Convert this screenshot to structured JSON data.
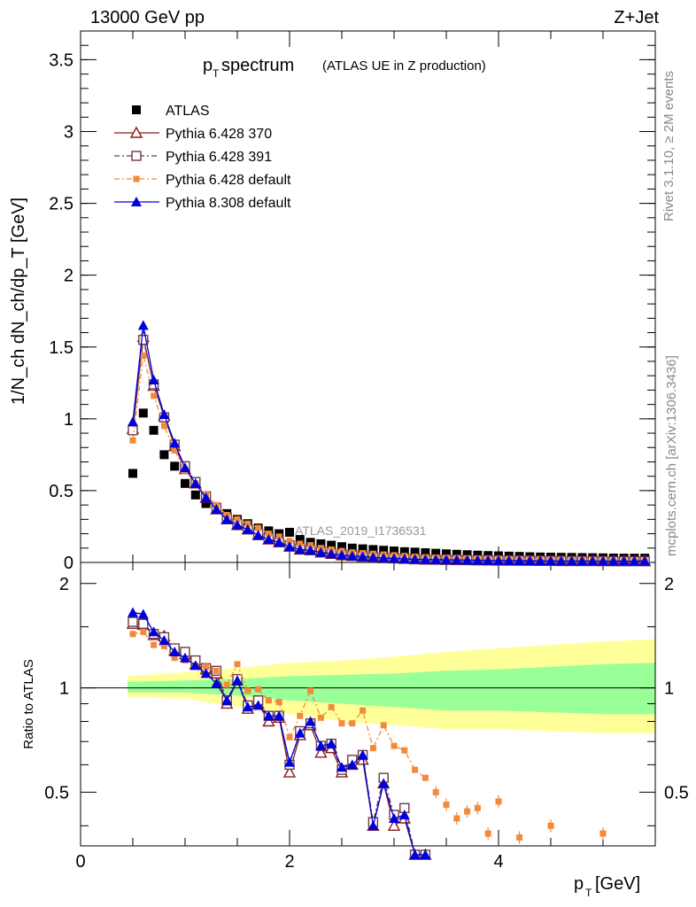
{
  "header": {
    "left": "13000 GeV pp",
    "right": "Z+Jet"
  },
  "side_labels": {
    "rivet": "Rivet 3.1.10, ≥ 2M events",
    "mcplots": "mcplots.cern.ch [arXiv:1306.3436]"
  },
  "watermark": "ATLAS_2019_I1736531",
  "colors": {
    "atlas": "#000000",
    "pythia6_370": "#8b1a1a",
    "pythia6_391": "#6e3b4a",
    "pythia6_default": "#f28a3b",
    "pythia8_default": "#0000dd",
    "band_inner": "#99ff99",
    "band_outer": "#ffff99"
  },
  "chart_data": [
    {
      "type": "scatter",
      "title_main": "p",
      "title_sub": "T",
      "title_rest": " spectrum",
      "title_paren": "(ATLAS UE in Z production)",
      "ylabel": "1/N_ch dN_ch/dp_T [GeV]",
      "xlim": [
        0,
        5.5
      ],
      "ylim": [
        0,
        3.7
      ],
      "yticks": [
        "0",
        "0.5",
        "1",
        "1.5",
        "2",
        "2.5",
        "3",
        "3.5"
      ],
      "x": [
        0.5,
        0.6,
        0.7,
        0.8,
        0.9,
        1.0,
        1.1,
        1.2,
        1.3,
        1.4,
        1.5,
        1.6,
        1.7,
        1.8,
        1.9,
        2.0,
        2.1,
        2.2,
        2.3,
        2.4,
        2.5,
        2.6,
        2.7,
        2.8,
        2.9,
        3.0,
        3.1,
        3.2,
        3.3,
        3.4,
        3.5,
        3.6,
        3.7,
        3.8,
        3.9,
        4.0,
        4.1,
        4.2,
        4.3,
        4.4,
        4.5,
        4.6,
        4.7,
        4.8,
        4.9,
        5.0,
        5.1,
        5.2,
        5.3,
        5.4
      ],
      "series": [
        {
          "name": "ATLAS",
          "style": "atlas",
          "values": [
            0.62,
            1.04,
            0.92,
            0.75,
            0.67,
            0.55,
            0.47,
            0.41,
            0.37,
            0.34,
            0.3,
            0.27,
            0.24,
            0.22,
            0.2,
            0.21,
            0.16,
            0.14,
            0.13,
            0.12,
            0.11,
            0.1,
            0.095,
            0.09,
            0.085,
            0.08,
            0.075,
            0.072,
            0.068,
            0.064,
            0.06,
            0.057,
            0.054,
            0.051,
            0.048,
            0.046,
            0.044,
            0.042,
            0.04,
            0.038,
            0.037,
            0.036,
            0.035,
            0.034,
            0.033,
            0.032,
            0.031,
            0.03,
            0.03,
            0.03
          ]
        },
        {
          "name": "Pythia 6.428 370",
          "style": "p370",
          "values": [
            0.93,
            1.57,
            1.23,
            1.02,
            0.81,
            0.65,
            0.55,
            0.45,
            0.37,
            0.3,
            0.26,
            0.23,
            0.19,
            0.16,
            0.14,
            0.11,
            0.09,
            0.085,
            0.07,
            0.06,
            0.05,
            0.045,
            0.04,
            0.035,
            0.03,
            0.028,
            0.025,
            0.022,
            0.02,
            0.019,
            0.018,
            0.017,
            0.016,
            0.015,
            0.014,
            0.013,
            0.013,
            0.012,
            0.012,
            0.011,
            0.011,
            0.01,
            0.01,
            0.01,
            0.01,
            0.009,
            0.009,
            0.009,
            0.009,
            0.009
          ]
        },
        {
          "name": "Pythia 6.428 391",
          "style": "p391",
          "values": [
            0.92,
            1.55,
            1.24,
            1.01,
            0.82,
            0.67,
            0.56,
            0.46,
            0.38,
            0.31,
            0.27,
            0.23,
            0.2,
            0.17,
            0.14,
            0.12,
            0.095,
            0.085,
            0.075,
            0.065,
            0.055,
            0.048,
            0.042,
            0.037,
            0.032,
            0.029,
            0.026,
            0.023,
            0.021,
            0.02,
            0.019,
            0.018,
            0.017,
            0.016,
            0.015,
            0.014,
            0.013,
            0.013,
            0.012,
            0.012,
            0.011,
            0.011,
            0.01,
            0.01,
            0.01,
            0.01,
            0.009,
            0.009,
            0.009,
            0.009
          ]
        },
        {
          "name": "Pythia 6.428 default",
          "style": "p6def",
          "values": [
            0.85,
            1.44,
            1.16,
            0.95,
            0.78,
            0.64,
            0.55,
            0.47,
            0.4,
            0.33,
            0.3,
            0.27,
            0.24,
            0.2,
            0.18,
            0.15,
            0.13,
            0.12,
            0.1,
            0.09,
            0.08,
            0.07,
            0.065,
            0.06,
            0.055,
            0.05,
            0.045,
            0.04,
            0.036,
            0.034,
            0.032,
            0.03,
            0.028,
            0.026,
            0.025,
            0.024,
            0.023,
            0.022,
            0.021,
            0.02,
            0.02,
            0.019,
            0.018,
            0.018,
            0.017,
            0.017,
            0.016,
            0.016,
            0.015,
            0.015
          ]
        },
        {
          "name": "Pythia 8.308 default",
          "style": "p8def",
          "values": [
            0.98,
            1.65,
            1.27,
            1.03,
            0.83,
            0.66,
            0.55,
            0.45,
            0.37,
            0.3,
            0.26,
            0.23,
            0.19,
            0.16,
            0.14,
            0.11,
            0.09,
            0.085,
            0.07,
            0.06,
            0.05,
            0.045,
            0.04,
            0.035,
            0.03,
            0.028,
            0.025,
            0.022,
            0.02,
            0.019,
            0.018,
            0.017,
            0.016,
            0.015,
            0.014,
            0.013,
            0.013,
            0.012,
            0.012,
            0.011,
            0.011,
            0.01,
            0.01,
            0.01,
            0.01,
            0.009,
            0.009,
            0.009,
            0.009,
            0.009
          ]
        }
      ]
    },
    {
      "type": "scatter",
      "ylabel": "Ratio to ATLAS",
      "xlabel_main": "p",
      "xlabel_sub": "T",
      "xlabel_rest": " [GeV]",
      "xlim": [
        0,
        5.5
      ],
      "ylim": [
        0.35,
        2.3
      ],
      "yticks": [
        "0.5",
        "1",
        "2"
      ],
      "xticks": [
        "0",
        "2",
        "4"
      ],
      "x": [
        0.5,
        0.6,
        0.7,
        0.8,
        0.9,
        1.0,
        1.1,
        1.2,
        1.3,
        1.4,
        1.5,
        1.6,
        1.7,
        1.8,
        1.9,
        2.0,
        2.1,
        2.2,
        2.3,
        2.4,
        2.5,
        2.6,
        2.7,
        2.8,
        2.9,
        3.0,
        3.1,
        3.2,
        3.3
      ],
      "band": {
        "x": [
          0.45,
          1.0,
          1.5,
          2.0,
          2.5,
          3.0,
          3.5,
          4.0,
          4.5,
          5.0,
          5.5
        ],
        "inner_low": [
          0.97,
          0.97,
          0.95,
          0.92,
          0.9,
          0.88,
          0.86,
          0.86,
          0.85,
          0.84,
          0.84
        ],
        "inner_high": [
          1.04,
          1.05,
          1.06,
          1.08,
          1.09,
          1.1,
          1.12,
          1.13,
          1.15,
          1.17,
          1.18
        ],
        "outer_low": [
          0.94,
          0.93,
          0.88,
          0.84,
          0.8,
          0.78,
          0.76,
          0.76,
          0.75,
          0.74,
          0.74
        ],
        "outer_high": [
          1.08,
          1.11,
          1.14,
          1.18,
          1.2,
          1.23,
          1.27,
          1.3,
          1.33,
          1.36,
          1.38
        ]
      },
      "series": [
        {
          "name": "Pythia 6.428 370",
          "style": "p370",
          "values": [
            1.53,
            1.52,
            1.42,
            1.41,
            1.28,
            1.25,
            1.17,
            1.13,
            1.1,
            0.9,
            1.05,
            0.87,
            0.9,
            0.8,
            0.82,
            0.57,
            0.73,
            0.78,
            0.65,
            0.67,
            0.57,
            0.6,
            0.62,
            0.4,
            0.53,
            0.4,
            0.42,
            0.33,
            0.33
          ]
        },
        {
          "name": "Pythia 6.428 391",
          "style": "p391",
          "values": [
            1.55,
            1.53,
            1.43,
            1.4,
            1.3,
            1.27,
            1.2,
            1.14,
            1.12,
            0.92,
            1.06,
            0.89,
            0.92,
            0.83,
            0.83,
            0.6,
            0.75,
            0.79,
            0.68,
            0.69,
            0.58,
            0.62,
            0.64,
            0.41,
            0.55,
            0.43,
            0.45,
            0.33,
            0.33
          ]
        },
        {
          "name": "Pythia 6.428 default",
          "style": "p6def",
          "values": [
            1.43,
            1.45,
            1.33,
            1.32,
            1.22,
            1.2,
            1.16,
            1.15,
            1.12,
            1.02,
            1.17,
            0.98,
            0.99,
            0.92,
            0.91,
            0.72,
            0.83,
            0.98,
            0.82,
            0.88,
            0.79,
            0.79,
            0.86,
            0.67,
            0.78,
            0.68,
            0.66,
            0.58,
            0.55
          ]
        },
        {
          "name": "Pythia 8.308 default",
          "style": "p8def",
          "values": [
            1.65,
            1.63,
            1.45,
            1.37,
            1.27,
            1.22,
            1.16,
            1.1,
            1.03,
            0.92,
            1.05,
            0.88,
            0.89,
            0.83,
            0.83,
            0.61,
            0.74,
            0.8,
            0.68,
            0.69,
            0.59,
            0.6,
            0.64,
            0.4,
            0.53,
            0.42,
            0.43,
            0.33,
            0.33
          ]
        }
      ],
      "extra_orange_points": {
        "x": [
          3.4,
          3.5,
          3.6,
          3.7,
          3.8,
          3.9,
          4.0,
          4.2,
          4.5,
          5.0
        ],
        "values": [
          0.5,
          0.46,
          0.42,
          0.44,
          0.45,
          0.38,
          0.47,
          0.37,
          0.4,
          0.38
        ]
      }
    }
  ]
}
